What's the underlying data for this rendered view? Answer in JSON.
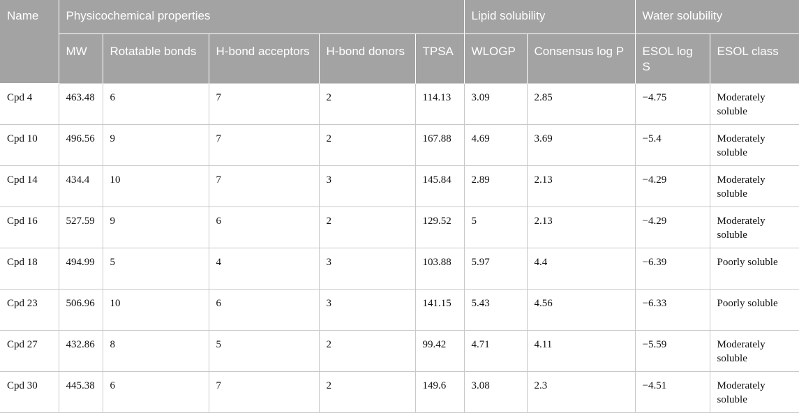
{
  "header": {
    "name": "Name",
    "groups": {
      "physicochemical": "Physicochemical properties",
      "lipid": "Lipid solubility",
      "water": "Water solubility"
    },
    "columns": {
      "mw": "MW",
      "rotatable": "Rotatable bonds",
      "hba": "H-bond acceptors",
      "hbd": "H-bond donors",
      "tpsa": "TPSA",
      "wlogp": "WLOGP",
      "consensus": "Consensus log P",
      "esol_logs": "ESOL log S",
      "esol_class": "ESOL class"
    }
  },
  "rows": [
    {
      "name": "Cpd 4",
      "mw": "463.48",
      "rotatable": "6",
      "hba": "7",
      "hbd": "2",
      "tpsa": "114.13",
      "wlogp": "3.09",
      "consensus": "2.85",
      "esol_logs": "−4.75",
      "esol_class": "Moderately soluble"
    },
    {
      "name": "Cpd 10",
      "mw": "496.56",
      "rotatable": "9",
      "hba": "7",
      "hbd": "2",
      "tpsa": "167.88",
      "wlogp": "4.69",
      "consensus": "3.69",
      "esol_logs": "−5.4",
      "esol_class": "Moderately soluble"
    },
    {
      "name": "Cpd 14",
      "mw": "434.4",
      "rotatable": "10",
      "hba": "7",
      "hbd": "3",
      "tpsa": "145.84",
      "wlogp": "2.89",
      "consensus": "2.13",
      "esol_logs": "−4.29",
      "esol_class": "Moderately soluble"
    },
    {
      "name": "Cpd 16",
      "mw": "527.59",
      "rotatable": "9",
      "hba": "6",
      "hbd": "2",
      "tpsa": "129.52",
      "wlogp": "5",
      "consensus": "2.13",
      "esol_logs": "−4.29",
      "esol_class": "Moderately soluble"
    },
    {
      "name": "Cpd 18",
      "mw": "494.99",
      "rotatable": "5",
      "hba": "4",
      "hbd": "3",
      "tpsa": "103.88",
      "wlogp": "5.97",
      "consensus": "4.4",
      "esol_logs": "−6.39",
      "esol_class": "Poorly soluble"
    },
    {
      "name": "Cpd 23",
      "mw": "506.96",
      "rotatable": "10",
      "hba": "6",
      "hbd": "3",
      "tpsa": "141.15",
      "wlogp": "5.43",
      "consensus": "4.56",
      "esol_logs": "−6.33",
      "esol_class": "Poorly soluble"
    },
    {
      "name": "Cpd 27",
      "mw": "432.86",
      "rotatable": "8",
      "hba": "5",
      "hbd": "2",
      "tpsa": "99.42",
      "wlogp": "4.71",
      "consensus": "4.11",
      "esol_logs": "−5.59",
      "esol_class": "Moderately soluble"
    },
    {
      "name": "Cpd 30",
      "mw": "445.38",
      "rotatable": "6",
      "hba": "7",
      "hbd": "2",
      "tpsa": "149.6",
      "wlogp": "3.08",
      "consensus": "2.3",
      "esol_logs": "−4.51",
      "esol_class": "Moderately soluble"
    }
  ],
  "colors": {
    "header_bg": "#a3a3a3",
    "header_text": "#ffffff",
    "grid_line": "#c8c8c8"
  }
}
